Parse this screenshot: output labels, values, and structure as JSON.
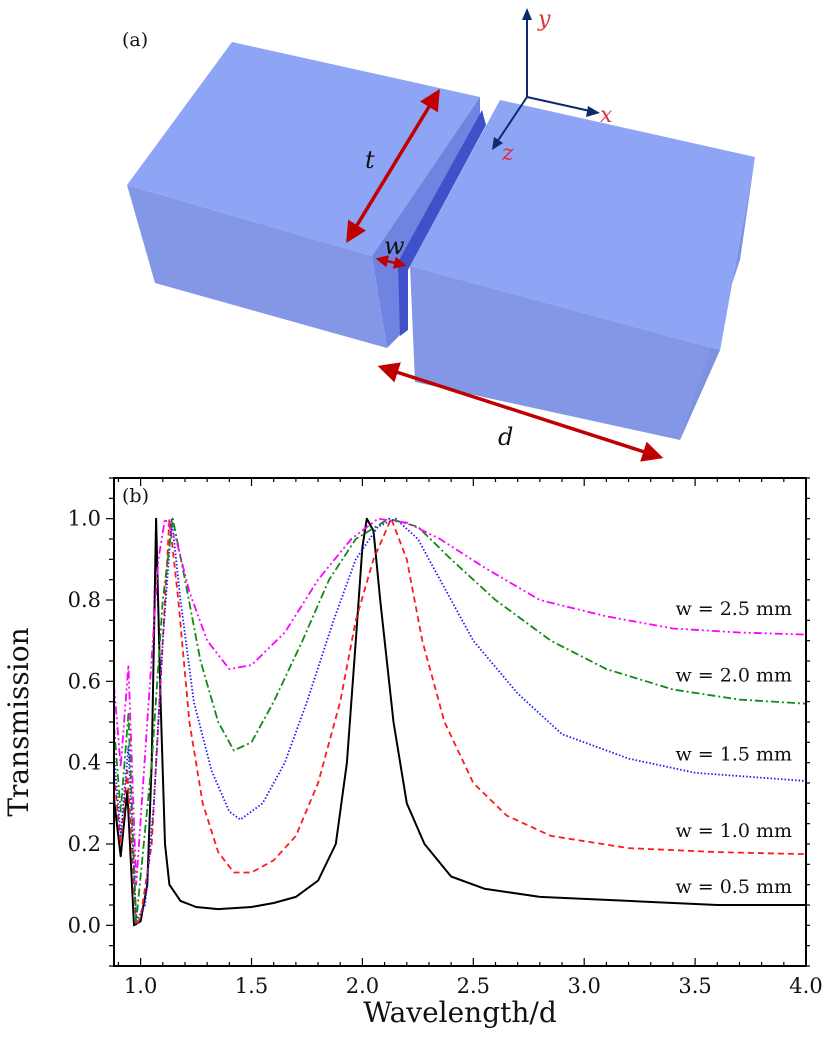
{
  "panel_a": {
    "label": "(a)",
    "dimension_labels": {
      "t": "t",
      "w": "w",
      "d": "d"
    },
    "coordinate_axes": {
      "x": "x",
      "y": "y",
      "z": "z"
    },
    "colors": {
      "block": "#8a9ff0",
      "block_top": "#8ea4f5",
      "block_side": "#7f92e0",
      "gap": "#3f50c8",
      "dimension_arrow": "#c00000",
      "axes": "#0d2a6b",
      "axis_letters": "#e0303a"
    }
  },
  "chart_data": {
    "type": "line",
    "panel_label": "(b)",
    "xlabel": "Wavelength/d",
    "ylabel": "Transmission",
    "xlim": [
      0.88,
      4.0
    ],
    "ylim": [
      -0.1,
      1.1
    ],
    "xticks": [
      "1.0",
      "1.5",
      "2.0",
      "2.5",
      "3.0",
      "3.5",
      "4.0"
    ],
    "yticks": [
      "0.0",
      "0.2",
      "0.4",
      "0.6",
      "0.8",
      "1.0"
    ],
    "grid": false,
    "legend": "inline labels at right",
    "series": [
      {
        "name": "w = 0.5 mm",
        "color": "#000000",
        "style": "solid",
        "x": [
          0.88,
          0.91,
          0.94,
          0.97,
          1.0,
          1.03,
          1.05,
          1.07,
          1.09,
          1.11,
          1.13,
          1.18,
          1.25,
          1.35,
          1.5,
          1.6,
          1.7,
          1.8,
          1.88,
          1.93,
          1.97,
          2.0,
          2.02,
          2.05,
          2.08,
          2.14,
          2.2,
          2.28,
          2.4,
          2.55,
          2.8,
          3.2,
          3.6,
          4.0
        ],
        "y": [
          0.31,
          0.17,
          0.33,
          0.0,
          0.01,
          0.1,
          0.4,
          1.0,
          0.55,
          0.2,
          0.1,
          0.06,
          0.045,
          0.04,
          0.045,
          0.055,
          0.07,
          0.11,
          0.2,
          0.4,
          0.7,
          0.93,
          1.0,
          0.97,
          0.8,
          0.5,
          0.3,
          0.2,
          0.12,
          0.09,
          0.07,
          0.06,
          0.05,
          0.05
        ]
      },
      {
        "name": "w = 1.0 mm",
        "color": "#ff1a1a",
        "style": "dashed",
        "x": [
          0.88,
          0.91,
          0.94,
          0.98,
          1.0,
          1.05,
          1.09,
          1.13,
          1.17,
          1.22,
          1.28,
          1.35,
          1.42,
          1.5,
          1.6,
          1.7,
          1.8,
          1.9,
          1.97,
          2.05,
          2.13,
          2.2,
          2.27,
          2.37,
          2.5,
          2.65,
          2.85,
          3.2,
          3.6,
          4.0
        ],
        "y": [
          0.37,
          0.2,
          0.38,
          0.0,
          0.02,
          0.2,
          0.6,
          1.0,
          0.8,
          0.5,
          0.3,
          0.18,
          0.13,
          0.13,
          0.16,
          0.22,
          0.35,
          0.55,
          0.75,
          0.9,
          1.0,
          0.9,
          0.7,
          0.5,
          0.35,
          0.27,
          0.22,
          0.19,
          0.18,
          0.175
        ]
      },
      {
        "name": "w = 1.5 mm",
        "color": "#1a1aff",
        "style": "dotted",
        "x": [
          0.88,
          0.91,
          0.945,
          0.98,
          1.02,
          1.06,
          1.1,
          1.14,
          1.18,
          1.24,
          1.32,
          1.4,
          1.45,
          1.55,
          1.65,
          1.75,
          1.87,
          1.97,
          2.07,
          2.15,
          2.25,
          2.35,
          2.5,
          2.7,
          2.9,
          3.2,
          3.5,
          4.0
        ],
        "y": [
          0.42,
          0.22,
          0.44,
          0.01,
          0.05,
          0.3,
          0.7,
          1.0,
          0.8,
          0.55,
          0.38,
          0.28,
          0.26,
          0.3,
          0.4,
          0.55,
          0.75,
          0.9,
          0.98,
          1.0,
          0.95,
          0.85,
          0.7,
          0.57,
          0.47,
          0.41,
          0.375,
          0.355
        ]
      },
      {
        "name": "w = 2.0 mm",
        "color": "#108a10",
        "style": "dash-dot",
        "x": [
          0.88,
          0.91,
          0.945,
          0.98,
          1.05,
          1.1,
          1.145,
          1.2,
          1.27,
          1.35,
          1.42,
          1.5,
          1.6,
          1.73,
          1.85,
          1.97,
          2.12,
          2.25,
          2.4,
          2.6,
          2.85,
          3.1,
          3.4,
          3.7,
          4.0
        ],
        "y": [
          0.49,
          0.28,
          0.52,
          0.01,
          0.4,
          0.8,
          1.0,
          0.85,
          0.65,
          0.5,
          0.43,
          0.45,
          0.55,
          0.7,
          0.85,
          0.95,
          1.0,
          0.98,
          0.9,
          0.8,
          0.7,
          0.63,
          0.58,
          0.555,
          0.545
        ]
      },
      {
        "name": "w = 2.5 mm",
        "color": "#ff00ff",
        "style": "dash-dot-dot",
        "x": [
          0.88,
          0.91,
          0.945,
          0.98,
          1.03,
          1.08,
          1.11,
          1.16,
          1.22,
          1.3,
          1.4,
          1.5,
          1.65,
          1.8,
          1.95,
          2.07,
          2.2,
          2.35,
          2.55,
          2.8,
          3.1,
          3.4,
          3.7,
          4.0
        ],
        "y": [
          0.59,
          0.39,
          0.64,
          0.1,
          0.5,
          0.9,
          1.0,
          0.95,
          0.82,
          0.7,
          0.63,
          0.64,
          0.72,
          0.85,
          0.95,
          1.0,
          0.99,
          0.95,
          0.88,
          0.8,
          0.76,
          0.73,
          0.72,
          0.715
        ]
      }
    ]
  }
}
